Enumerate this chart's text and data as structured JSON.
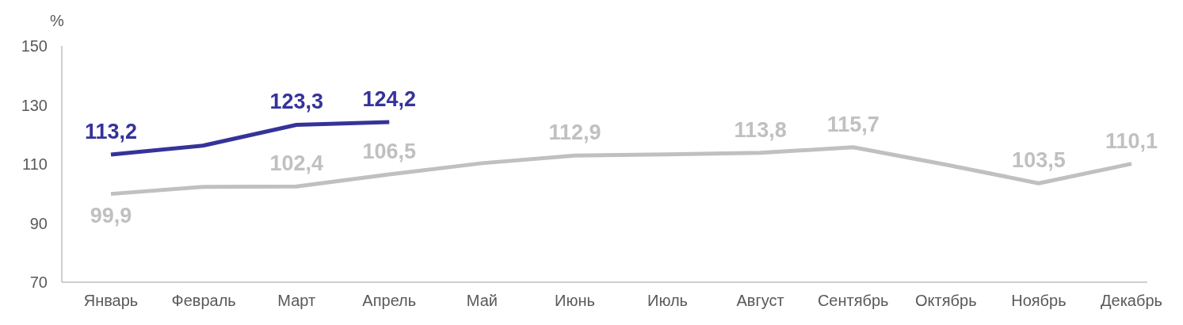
{
  "chart_data": {
    "type": "line",
    "ylabel": "%",
    "categories": [
      "Январь",
      "Февраль",
      "Март",
      "Апрель",
      "Май",
      "Июнь",
      "Июль",
      "Август",
      "Сентябрь",
      "Октябрь",
      "Ноябрь",
      "Декабрь"
    ],
    "ylim": [
      70,
      150
    ],
    "yticks": [
      70,
      90,
      110,
      130,
      150
    ],
    "grid": false,
    "marker": "none",
    "line_style": "solid",
    "series": [
      {
        "color": "#c0c0c0",
        "values": [
          99.9,
          102.3,
          102.4,
          106.5,
          110.3,
          112.9,
          113.3,
          113.8,
          115.7,
          109.8,
          103.5,
          110.1
        ],
        "value_labels": [
          "99,9",
          null,
          "102,4",
          "106,5",
          null,
          "112,9",
          null,
          "113,8",
          "115,7",
          null,
          "103,5",
          "110,1"
        ]
      },
      {
        "color": "#35339a",
        "values": [
          113.2,
          116.3,
          123.3,
          124.2,
          null,
          null,
          null,
          null,
          null,
          null,
          null,
          null
        ],
        "value_labels": [
          "113,2",
          null,
          "123,3",
          "124,2",
          null,
          null,
          null,
          null,
          null,
          null,
          null,
          null
        ]
      }
    ]
  }
}
